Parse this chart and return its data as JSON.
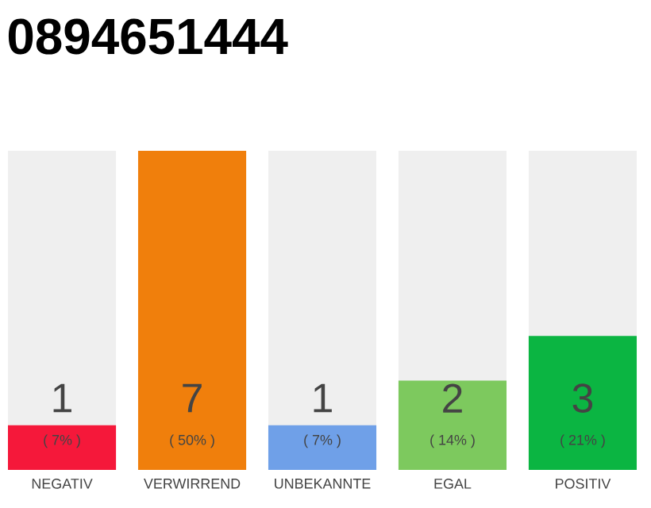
{
  "chart_data": {
    "type": "bar",
    "title": "0894651444",
    "categories": [
      "NEGATIV",
      "VERWIRREND",
      "UNBEKANNTE",
      "EGAL",
      "POSITIV"
    ],
    "values": [
      7,
      50,
      7,
      14,
      21
    ],
    "colors": [
      "#f5183a",
      "#f07f0c",
      "#6fa0e8",
      "#7dc95e",
      "#0bb542"
    ],
    "value_labels": [
      "( 7% )",
      "( 50% )",
      "( 7% )",
      "( 14% )",
      "( 21% )"
    ],
    "annotations": [
      "1",
      "7",
      "1",
      "2",
      "3"
    ],
    "tick_labels": "x"
  }
}
